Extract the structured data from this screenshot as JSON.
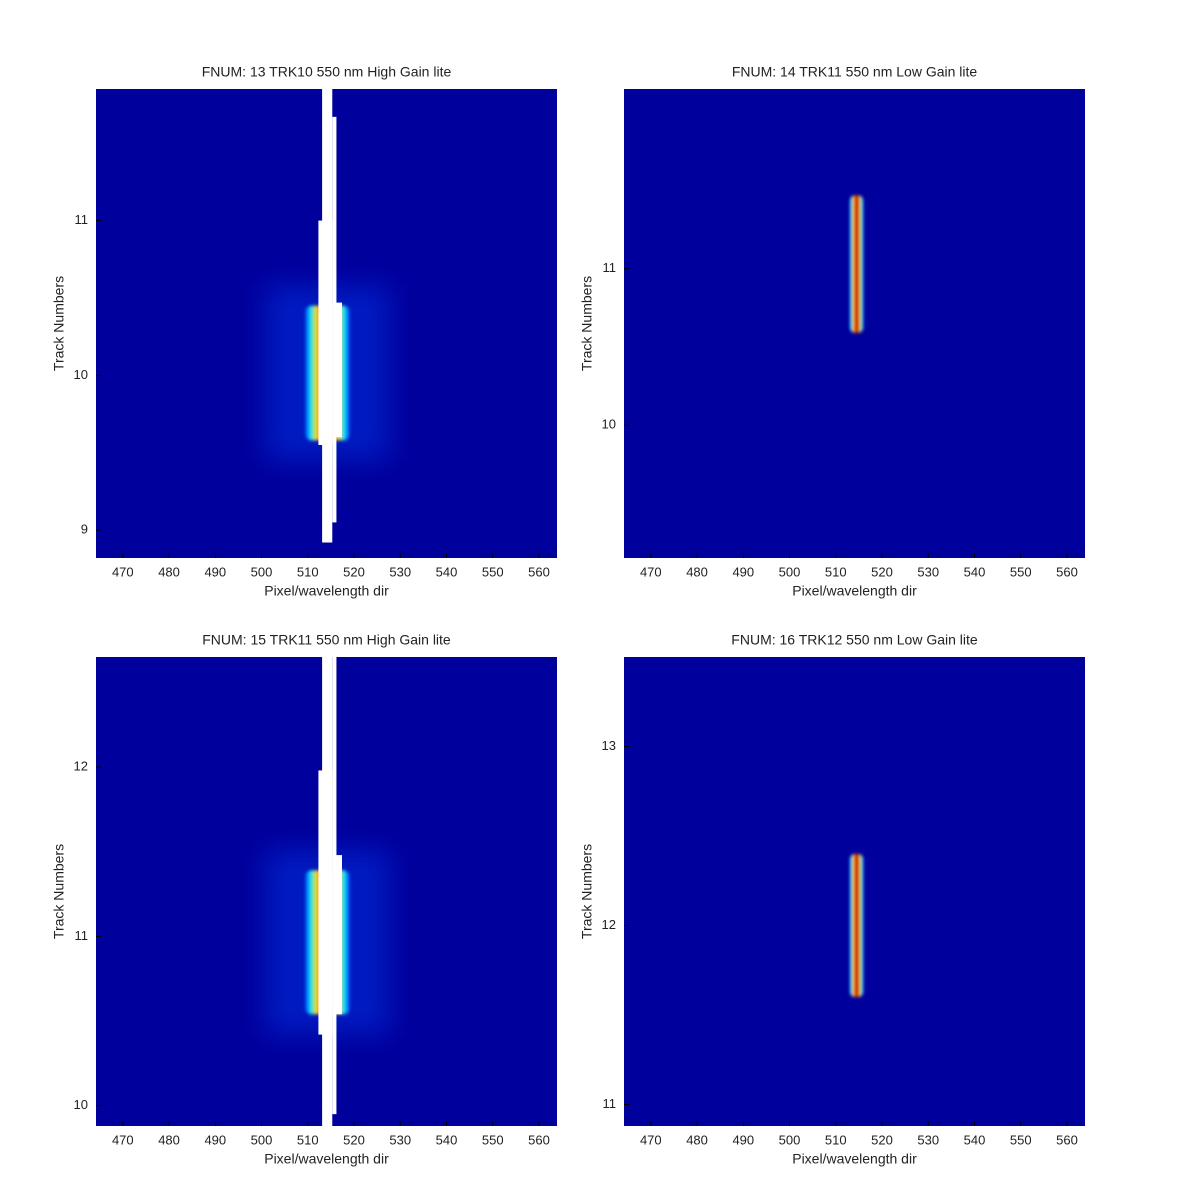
{
  "chart_data": [
    {
      "type": "heatmap",
      "title": "FNUM: 13 TRK10 550 nm High Gain lite",
      "xlabel": "Pixel/wavelength dir",
      "ylabel": "Track Numbers",
      "xlim": [
        464.2,
        563.9
      ],
      "ylim": [
        8.82,
        11.85
      ],
      "xticks": [
        470,
        480,
        490,
        500,
        510,
        520,
        530,
        540,
        550,
        560
      ],
      "yticks": [
        9,
        10,
        11
      ],
      "streak": {
        "x": [
          509.5,
          519
        ],
        "y": [
          9.58,
          10.45
        ]
      },
      "saturated": [
        {
          "x": [
            513.1,
            515.3
          ],
          "y": [
            8.92,
            11.85
          ]
        },
        {
          "x": [
            515.3,
            516.2
          ],
          "y": [
            9.05,
            11.67
          ]
        },
        {
          "x": [
            512.3,
            515.3
          ],
          "y": [
            9.55,
            11.0
          ]
        },
        {
          "x": [
            515.3,
            517.4
          ],
          "y": [
            9.6,
            10.47
          ]
        }
      ]
    },
    {
      "type": "heatmap",
      "title": "FNUM: 14 TRK11 550 nm Low Gain lite",
      "xlabel": "Pixel/wavelength dir",
      "ylabel": "Track Numbers",
      "xlim": [
        464.2,
        563.9
      ],
      "ylim": [
        9.15,
        12.15
      ],
      "xticks": [
        470,
        480,
        490,
        500,
        510,
        520,
        530,
        540,
        550,
        560
      ],
      "yticks": [
        10,
        11
      ],
      "streak": {
        "x": [
          513,
          516
        ],
        "y": [
          10.59,
          11.47
        ]
      },
      "saturated": []
    },
    {
      "type": "heatmap",
      "title": "FNUM: 15 TRK11 550 nm High Gain lite",
      "xlabel": "Pixel/wavelength dir",
      "ylabel": "Track Numbers",
      "xlim": [
        464.2,
        563.9
      ],
      "ylim": [
        9.88,
        12.65
      ],
      "xticks": [
        470,
        480,
        490,
        500,
        510,
        520,
        530,
        540,
        550,
        560
      ],
      "yticks": [
        10,
        11,
        12
      ],
      "streak": {
        "x": [
          509.5,
          519
        ],
        "y": [
          10.54,
          11.39
        ]
      },
      "saturated": [
        {
          "x": [
            513.1,
            515.3
          ],
          "y": [
            9.88,
            12.65
          ]
        },
        {
          "x": [
            515.3,
            516.2
          ],
          "y": [
            9.95,
            12.65
          ]
        },
        {
          "x": [
            512.3,
            515.3
          ],
          "y": [
            10.42,
            11.98
          ]
        },
        {
          "x": [
            515.3,
            517.4
          ],
          "y": [
            10.54,
            11.48
          ]
        }
      ]
    },
    {
      "type": "heatmap",
      "title": "FNUM: 16 TRK12 550 nm Low Gain lite",
      "xlabel": "Pixel/wavelength dir",
      "ylabel": "Track Numbers",
      "xlim": [
        464.2,
        563.9
      ],
      "ylim": [
        10.88,
        13.5
      ],
      "xticks": [
        470,
        480,
        490,
        500,
        510,
        520,
        530,
        540,
        550,
        560
      ],
      "yticks": [
        11,
        12,
        13
      ],
      "streak": {
        "x": [
          513,
          516
        ],
        "y": [
          11.6,
          12.4
        ]
      },
      "saturated": []
    }
  ]
}
